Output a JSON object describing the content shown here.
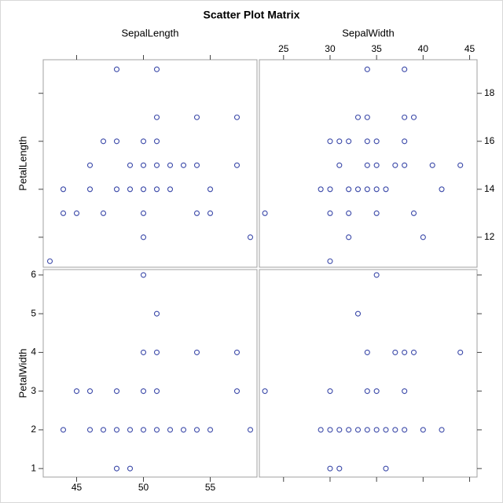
{
  "chart_data": {
    "type": "scatter_matrix",
    "title": "Scatter Plot Matrix",
    "color": "#3a48a8",
    "columns": [
      {
        "label": "SepalLength",
        "lim": [
          42.5,
          58.5
        ],
        "ticks": [
          45,
          50,
          55
        ]
      },
      {
        "label": "SepalWidth",
        "lim": [
          22.4,
          45.8
        ],
        "ticks": [
          25,
          30,
          35,
          40,
          45
        ]
      }
    ],
    "rows": [
      {
        "label": "PetalLength",
        "lim": [
          10.75,
          19.4
        ],
        "ticks": [
          12,
          14,
          16,
          18
        ]
      },
      {
        "label": "PetalWidth",
        "lim": [
          0.78,
          6.14
        ],
        "ticks": [
          1,
          2,
          3,
          4,
          5,
          6
        ]
      }
    ],
    "panels": [
      {
        "x": [
          48,
          51,
          51,
          54,
          57,
          47,
          48,
          50,
          51,
          46,
          49,
          50,
          51,
          52,
          53,
          54,
          57,
          44,
          46,
          48,
          49,
          50,
          51,
          52,
          55,
          44,
          45,
          47,
          50,
          54,
          55,
          50,
          58,
          43
        ],
        "y": [
          19,
          19,
          17,
          17,
          17,
          16,
          16,
          16,
          16,
          15,
          15,
          15,
          15,
          15,
          15,
          15,
          15,
          14,
          14,
          14,
          14,
          14,
          14,
          14,
          14,
          13,
          13,
          13,
          13,
          13,
          13,
          12,
          12,
          11
        ]
      },
      {
        "x": [
          34,
          38,
          33,
          34,
          38,
          39,
          30,
          31,
          32,
          34,
          35,
          38,
          31,
          34,
          35,
          37,
          38,
          41,
          44,
          29,
          30,
          32,
          33,
          34,
          35,
          36,
          42,
          23,
          30,
          32,
          35,
          39,
          32,
          40,
          30
        ],
        "y": [
          19,
          19,
          17,
          17,
          17,
          17,
          16,
          16,
          16,
          16,
          16,
          16,
          15,
          15,
          15,
          15,
          15,
          15,
          15,
          14,
          14,
          14,
          14,
          14,
          14,
          14,
          14,
          13,
          13,
          13,
          13,
          13,
          12,
          12,
          11
        ]
      },
      {
        "x": [
          50,
          51,
          50,
          51,
          54,
          57,
          45,
          46,
          48,
          50,
          51,
          57,
          44,
          46,
          47,
          48,
          49,
          50,
          51,
          52,
          53,
          54,
          55,
          58,
          48,
          49
        ],
        "y": [
          6,
          5,
          4,
          4,
          4,
          4,
          3,
          3,
          3,
          3,
          3,
          3,
          2,
          2,
          2,
          2,
          2,
          2,
          2,
          2,
          2,
          2,
          2,
          2,
          1,
          1
        ]
      },
      {
        "x": [
          35,
          33,
          34,
          37,
          38,
          39,
          44,
          23,
          30,
          34,
          35,
          38,
          29,
          30,
          31,
          32,
          33,
          34,
          35,
          36,
          37,
          38,
          40,
          42,
          30,
          31,
          36
        ],
        "y": [
          6,
          5,
          4,
          4,
          4,
          4,
          4,
          3,
          3,
          3,
          3,
          3,
          2,
          2,
          2,
          2,
          2,
          2,
          2,
          2,
          2,
          2,
          2,
          2,
          1,
          1,
          1
        ]
      }
    ]
  }
}
